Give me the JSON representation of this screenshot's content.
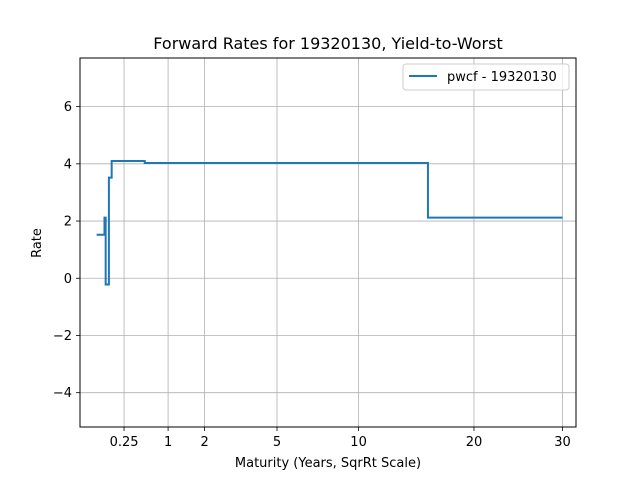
{
  "chart_data": {
    "type": "line",
    "title": "Forward Rates for 19320130, Yield-to-Worst",
    "xlabel": "Maturity (Years, SqrRt Scale)",
    "ylabel": "Rate",
    "x_scale": "sqrt",
    "xlim": [
      0,
      31.7
    ],
    "ylim": [
      -5.2,
      7.7
    ],
    "x_ticks": [
      0.25,
      1,
      2,
      5,
      10,
      20,
      30
    ],
    "x_tick_labels": [
      "0.25",
      "1",
      "2",
      "5",
      "10",
      "20",
      "30"
    ],
    "y_ticks": [
      -4,
      -2,
      0,
      2,
      4,
      6
    ],
    "y_tick_labels": [
      "−4",
      "−2",
      "0",
      "2",
      "4",
      "6"
    ],
    "grid": true,
    "legend_position": "top-right",
    "series": [
      {
        "name": "pwcf - 19320130",
        "color": "#1f77b4",
        "style": "step",
        "x": [
          0.0356,
          0.0772,
          0.0772,
          0.0849,
          0.0849,
          0.1076,
          0.1076,
          0.1292,
          0.1292,
          0.5403,
          0.5403,
          1.0,
          1.0,
          15.6,
          15.6,
          30.0
        ],
        "y": [
          1.52,
          1.52,
          2.12,
          2.12,
          -0.22,
          -0.22,
          3.52,
          3.52,
          4.1,
          4.1,
          4.03,
          4.03,
          4.03,
          4.03,
          2.12,
          2.12
        ]
      }
    ]
  }
}
